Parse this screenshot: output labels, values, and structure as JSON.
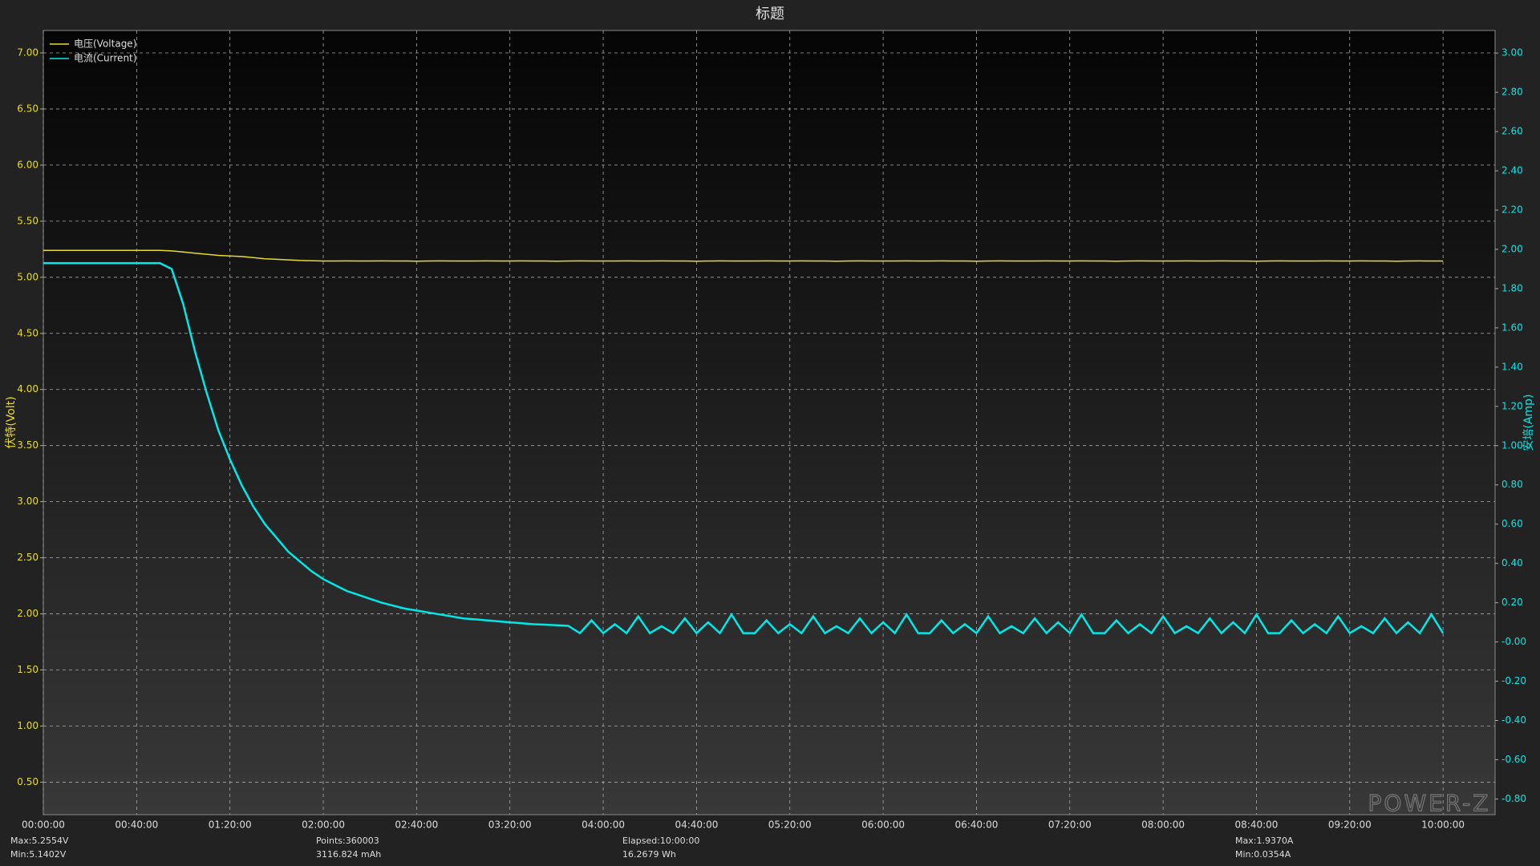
{
  "chart_data": {
    "type": "line",
    "title": "标题",
    "y_label": "伏特(Volt)",
    "y2_label": "安培(Amp)",
    "x": [
      0,
      5,
      10,
      15,
      20,
      25,
      30,
      35,
      40,
      45,
      50,
      55,
      60,
      65,
      70,
      75,
      80,
      85,
      90,
      95,
      100,
      105,
      110,
      115,
      120,
      125,
      130,
      135,
      140,
      145,
      150,
      155,
      160,
      165,
      170,
      175,
      180,
      185,
      190,
      195,
      200,
      205,
      210,
      215,
      220,
      225,
      230,
      235,
      240,
      245,
      250,
      255,
      260,
      265,
      270,
      275,
      280,
      285,
      290,
      295,
      300,
      305,
      310,
      315,
      320,
      325,
      330,
      335,
      340,
      345,
      350,
      355,
      360,
      365,
      370,
      375,
      380,
      385,
      390,
      395,
      400,
      405,
      410,
      415,
      420,
      425,
      430,
      435,
      440,
      445,
      450,
      455,
      460,
      465,
      470,
      475,
      480,
      485,
      490,
      495,
      500,
      505,
      510,
      515,
      520,
      525,
      530,
      535,
      540,
      545,
      550,
      555,
      560,
      565,
      570,
      575,
      580,
      585,
      590,
      595,
      600
    ],
    "series": [
      {
        "name": "电压(Voltage)",
        "color": "#e6dc2c",
        "values": [
          5.24,
          5.24,
          5.24,
          5.24,
          5.24,
          5.24,
          5.24,
          5.24,
          5.24,
          5.24,
          5.24,
          5.235,
          5.225,
          5.215,
          5.205,
          5.195,
          5.19,
          5.185,
          5.175,
          5.165,
          5.16,
          5.155,
          5.15,
          5.148,
          5.145,
          5.145,
          5.146,
          5.145,
          5.145,
          5.146,
          5.145,
          5.145,
          5.144,
          5.145,
          5.146,
          5.145,
          5.145,
          5.145,
          5.146,
          5.145,
          5.145,
          5.146,
          5.145,
          5.145,
          5.144,
          5.145,
          5.146,
          5.145,
          5.145,
          5.145,
          5.146,
          5.145,
          5.145,
          5.146,
          5.145,
          5.145,
          5.144,
          5.145,
          5.146,
          5.145,
          5.145,
          5.145,
          5.146,
          5.145,
          5.145,
          5.146,
          5.145,
          5.145,
          5.144,
          5.145,
          5.146,
          5.145,
          5.145,
          5.145,
          5.146,
          5.145,
          5.145,
          5.146,
          5.145,
          5.145,
          5.144,
          5.145,
          5.146,
          5.145,
          5.145,
          5.145,
          5.146,
          5.145,
          5.145,
          5.146,
          5.145,
          5.145,
          5.144,
          5.145,
          5.146,
          5.145,
          5.145,
          5.145,
          5.146,
          5.145,
          5.145,
          5.146,
          5.145,
          5.145,
          5.144,
          5.145,
          5.146,
          5.145,
          5.145,
          5.145,
          5.146,
          5.145,
          5.145,
          5.146,
          5.145,
          5.145,
          5.144,
          5.145,
          5.146,
          5.145,
          5.145
        ]
      },
      {
        "name": "电流(Current)",
        "color": "#00e8e8",
        "axis": "y2",
        "values": [
          1.93,
          1.93,
          1.93,
          1.93,
          1.93,
          1.93,
          1.93,
          1.93,
          1.93,
          1.93,
          1.93,
          1.9,
          1.72,
          1.48,
          1.27,
          1.08,
          0.93,
          0.8,
          0.69,
          0.6,
          0.53,
          0.46,
          0.41,
          0.36,
          0.32,
          0.29,
          0.26,
          0.24,
          0.22,
          0.2,
          0.185,
          0.17,
          0.16,
          0.15,
          0.14,
          0.13,
          0.12,
          0.115,
          0.11,
          0.105,
          0.1,
          0.095,
          0.09,
          0.088,
          0.085,
          0.082,
          0.045,
          0.11,
          0.045,
          0.09,
          0.045,
          0.13,
          0.045,
          0.08,
          0.045,
          0.12,
          0.045,
          0.1,
          0.045,
          0.14,
          0.045,
          0.045,
          0.11,
          0.045,
          0.09,
          0.045,
          0.13,
          0.045,
          0.08,
          0.045,
          0.12,
          0.045,
          0.1,
          0.045,
          0.14,
          0.045,
          0.045,
          0.11,
          0.045,
          0.09,
          0.045,
          0.13,
          0.045,
          0.08,
          0.045,
          0.12,
          0.045,
          0.1,
          0.045,
          0.14,
          0.045,
          0.045,
          0.11,
          0.045,
          0.09,
          0.045,
          0.13,
          0.045,
          0.08,
          0.045,
          0.12,
          0.045,
          0.1,
          0.045,
          0.14,
          0.045,
          0.045,
          0.11,
          0.045,
          0.09,
          0.045,
          0.13,
          0.045,
          0.08,
          0.045,
          0.12,
          0.045,
          0.1,
          0.045,
          0.14,
          0.045
        ]
      }
    ],
    "xlim": [
      0,
      622.3
    ],
    "xticks": [
      {
        "value": 0,
        "label": "00:00:00"
      },
      {
        "value": 40,
        "label": "00:40:00"
      },
      {
        "value": 80,
        "label": "01:20:00"
      },
      {
        "value": 120,
        "label": "02:00:00"
      },
      {
        "value": 160,
        "label": "02:40:00"
      },
      {
        "value": 200,
        "label": "03:20:00"
      },
      {
        "value": 240,
        "label": "04:00:00"
      },
      {
        "value": 280,
        "label": "04:40:00"
      },
      {
        "value": 320,
        "label": "05:20:00"
      },
      {
        "value": 360,
        "label": "06:00:00"
      },
      {
        "value": 400,
        "label": "06:40:00"
      },
      {
        "value": 440,
        "label": "07:20:00"
      },
      {
        "value": 480,
        "label": "08:00:00"
      },
      {
        "value": 520,
        "label": "08:40:00"
      },
      {
        "value": 560,
        "label": "09:20:00"
      },
      {
        "value": 600,
        "label": "10:00:00"
      }
    ],
    "ylim": [
      0.21,
      7.2
    ],
    "yticks": [
      {
        "value": 0.5,
        "label": "0.50"
      },
      {
        "value": 1,
        "label": "1.00"
      },
      {
        "value": 1.5,
        "label": "1.50"
      },
      {
        "value": 2,
        "label": "2.00"
      },
      {
        "value": 2.5,
        "label": "2.50"
      },
      {
        "value": 3,
        "label": "3.00"
      },
      {
        "value": 3.5,
        "label": "3.50"
      },
      {
        "value": 4,
        "label": "4.00"
      },
      {
        "value": 4.5,
        "label": "4.50"
      },
      {
        "value": 5,
        "label": "5.00"
      },
      {
        "value": 5.5,
        "label": "5.50"
      },
      {
        "value": 6,
        "label": "6.00"
      },
      {
        "value": 6.5,
        "label": "6.50"
      },
      {
        "value": 7,
        "label": "7.00"
      }
    ],
    "y2lim": [
      -0.88,
      3.115
    ],
    "y2ticks": [
      {
        "value": -0.8,
        "label": "-0.80"
      },
      {
        "value": -0.6,
        "label": "-0.60"
      },
      {
        "value": -0.4,
        "label": "-0.40"
      },
      {
        "value": -0.2,
        "label": "-0.20"
      },
      {
        "value": 0,
        "label": "-0.00"
      },
      {
        "value": 0.2,
        "label": "0.20"
      },
      {
        "value": 0.4,
        "label": "0.40"
      },
      {
        "value": 0.6,
        "label": "0.60"
      },
      {
        "value": 0.8,
        "label": "0.80"
      },
      {
        "value": 1,
        "label": "1.00"
      },
      {
        "value": 1.2,
        "label": "1.20"
      },
      {
        "value": 1.4,
        "label": "1.40"
      },
      {
        "value": 1.6,
        "label": "1.60"
      },
      {
        "value": 1.8,
        "label": "1.80"
      },
      {
        "value": 2,
        "label": "2.00"
      },
      {
        "value": 2.2,
        "label": "2.20"
      },
      {
        "value": 2.4,
        "label": "2.40"
      },
      {
        "value": 2.6,
        "label": "2.60"
      },
      {
        "value": 2.8,
        "label": "2.80"
      },
      {
        "value": 3,
        "label": "3.00"
      }
    ],
    "grid": true,
    "legend": "top-left",
    "stats": [
      "Max:5.2554V",
      "Min:5.1402V",
      "Points:360003",
      "3116.824 mAh",
      "Elapsed:10:00:00",
      "16.2679 Wh",
      "Max:1.9370A",
      "Min:0.0354A"
    ],
    "watermark": "POWER-Z"
  }
}
